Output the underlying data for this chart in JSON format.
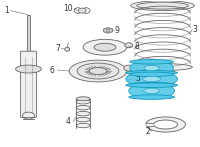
{
  "background_color": "#ffffff",
  "figure_width": 2.0,
  "figure_height": 1.47,
  "dpi": 100,
  "line_color": "#666666",
  "highlight_color": "#55c8e8",
  "highlight_edge": "#1199bb",
  "gray_fill": "#f0f0f0",
  "gray_mid": "#e0e0e0",
  "lw": 0.6
}
